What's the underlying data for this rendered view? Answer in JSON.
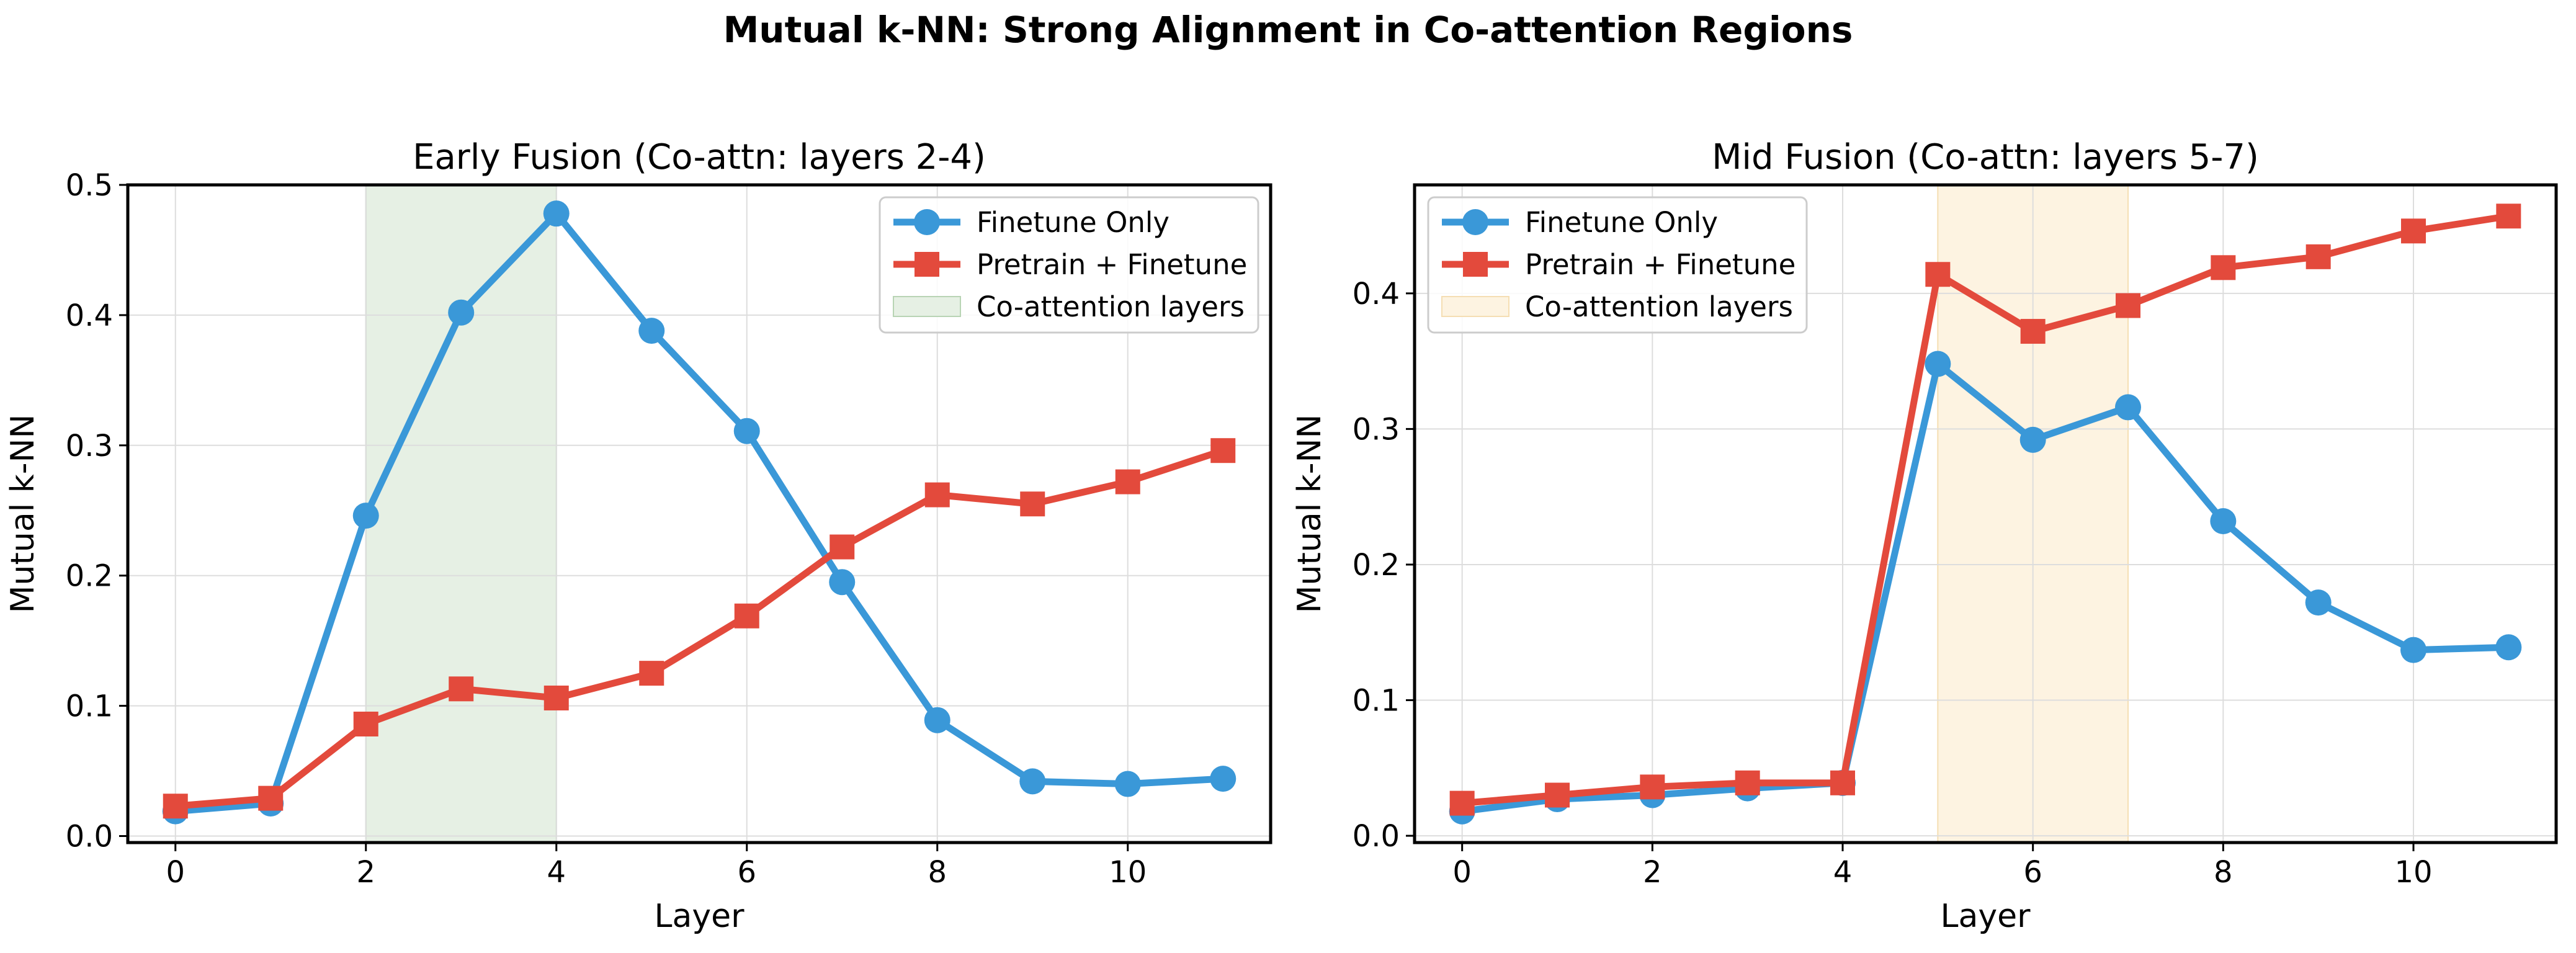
{
  "figure": {
    "suptitle": "Mutual k-NN: Strong Alignment in Co-attention Regions"
  },
  "chart_data": [
    {
      "type": "line",
      "title": "Early Fusion (Co-attn: layers 2-4)",
      "xlabel": "Layer",
      "ylabel": "Mutual k-NN",
      "xlim": [
        -0.5,
        11.5
      ],
      "ylim": [
        -0.005,
        0.5
      ],
      "xticks": [
        0,
        2,
        4,
        6,
        8,
        10
      ],
      "yticks": [
        0.0,
        0.1,
        0.2,
        0.3,
        0.4,
        0.5
      ],
      "ytick_labels": [
        "0.0",
        "0.1",
        "0.2",
        "0.3",
        "0.4",
        "0.5"
      ],
      "x": [
        0,
        1,
        2,
        3,
        4,
        5,
        6,
        7,
        8,
        9,
        10,
        11
      ],
      "series": [
        {
          "name": "Finetune Only",
          "marker": "circle",
          "color": "#3a98d8",
          "values": [
            0.019,
            0.025,
            0.246,
            0.402,
            0.478,
            0.388,
            0.311,
            0.195,
            0.089,
            0.042,
            0.04,
            0.044
          ]
        },
        {
          "name": "Pretrain + Finetune",
          "marker": "square",
          "color": "#e34a3c",
          "values": [
            0.023,
            0.029,
            0.086,
            0.113,
            0.106,
            0.125,
            0.169,
            0.222,
            0.262,
            0.255,
            0.272,
            0.296
          ]
        }
      ],
      "shaded_region": {
        "name": "Co-attention layers",
        "x": [
          2,
          4
        ],
        "color": "#e6f0e4"
      },
      "legend": "top-right",
      "grid": true
    },
    {
      "type": "line",
      "title": "Mid Fusion (Co-attn: layers 5-7)",
      "xlabel": "Layer",
      "ylabel": "Mutual k-NN",
      "xlim": [
        -0.5,
        11.5
      ],
      "ylim": [
        -0.005,
        0.48
      ],
      "xticks": [
        0,
        2,
        4,
        6,
        8,
        10
      ],
      "yticks": [
        0.0,
        0.1,
        0.2,
        0.3,
        0.4
      ],
      "ytick_labels": [
        "0.0",
        "0.1",
        "0.2",
        "0.3",
        "0.4"
      ],
      "x": [
        0,
        1,
        2,
        3,
        4,
        5,
        6,
        7,
        8,
        9,
        10,
        11
      ],
      "series": [
        {
          "name": "Finetune Only",
          "marker": "circle",
          "color": "#3a98d8",
          "values": [
            0.018,
            0.027,
            0.03,
            0.035,
            0.039,
            0.348,
            0.292,
            0.316,
            0.232,
            0.172,
            0.137,
            0.139
          ]
        },
        {
          "name": "Pretrain + Finetune",
          "marker": "square",
          "color": "#e34a3c",
          "values": [
            0.024,
            0.03,
            0.036,
            0.039,
            0.039,
            0.414,
            0.372,
            0.391,
            0.419,
            0.427,
            0.446,
            0.457
          ]
        }
      ],
      "shaded_region": {
        "name": "Co-attention layers",
        "x": [
          5,
          7
        ],
        "color": "#fdf3e1"
      },
      "legend": "top-left",
      "grid": true
    }
  ]
}
